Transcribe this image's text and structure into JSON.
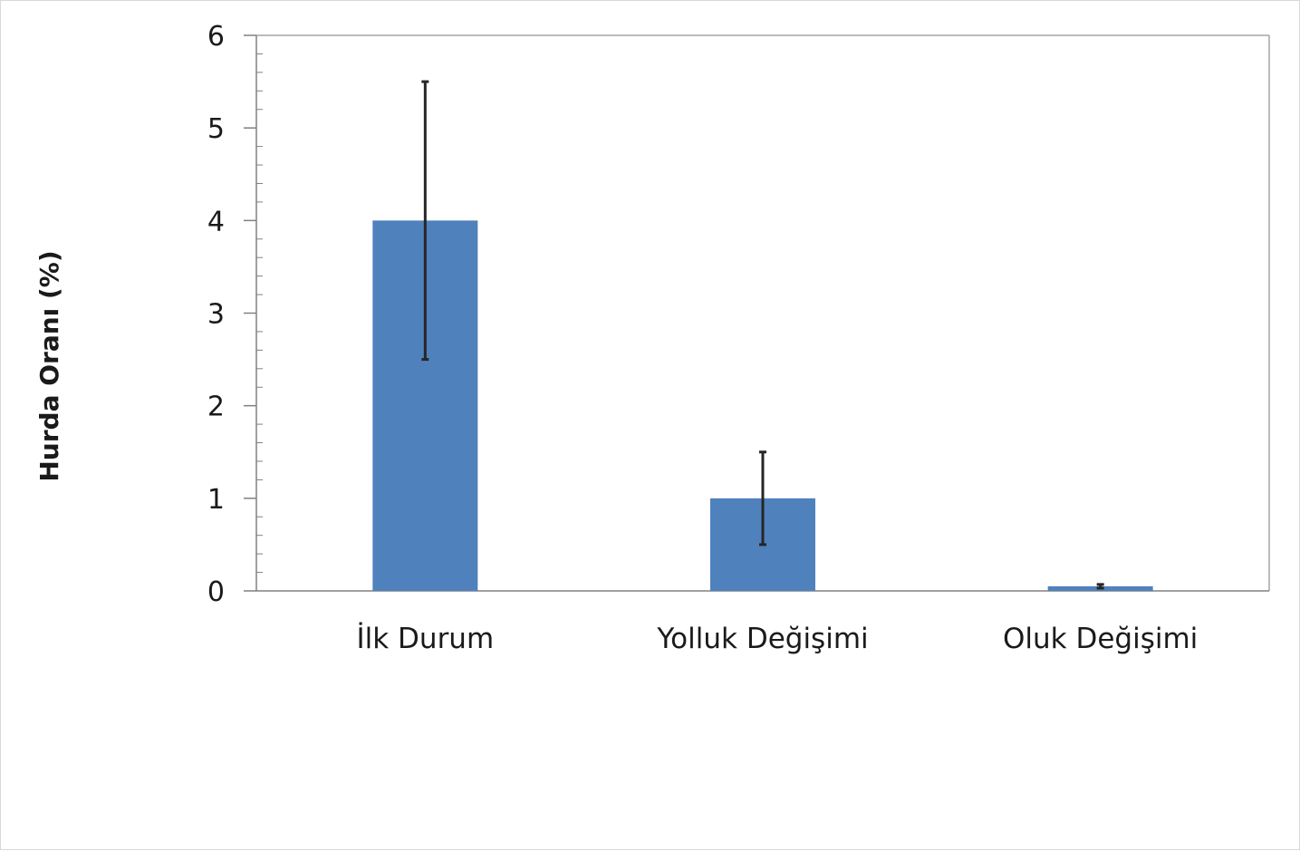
{
  "chart_data": {
    "type": "bar",
    "title": "",
    "xlabel": "",
    "ylabel": "Hurda Oranı (%)",
    "categories": [
      "İlk Durum",
      "Yolluk Değişimi",
      "Oluk Değişimi"
    ],
    "values": [
      4,
      1,
      0.05
    ],
    "error_bars": [
      {
        "low": 2.5,
        "high": 5.5
      },
      {
        "low": 0.5,
        "high": 1.5
      },
      {
        "low": 0.03,
        "high": 0.07
      }
    ],
    "ylim": [
      0,
      6
    ],
    "yticks": [
      "0",
      "1",
      "2",
      "3",
      "4",
      "5",
      "6"
    ],
    "minor_ticks_per_major": 5,
    "grid": false,
    "legend": "none",
    "colors": {
      "bar": "#4f81bd",
      "error_bar": "#262626",
      "axis": "#808080",
      "frame": "#a6a6a6"
    }
  }
}
